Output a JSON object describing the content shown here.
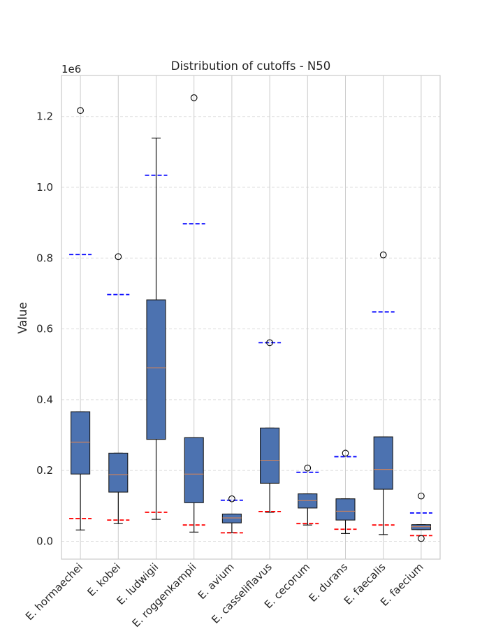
{
  "chart_data": {
    "type": "box",
    "title": "Distribution of cutoffs - N50",
    "xlabel": "",
    "ylabel": "Value",
    "y_offset_label": "1e6",
    "ylim": [
      -0.052,
      1.315
    ],
    "yticks": [
      0.0,
      0.2,
      0.4,
      0.6,
      0.8,
      1.0,
      1.2
    ],
    "ytick_labels": [
      "0.0",
      "0.2",
      "0.4",
      "0.6",
      "0.8",
      "1.0",
      "1.2"
    ],
    "grid": true,
    "categories": [
      "E. hormaechei",
      "E. kobei",
      "E. ludwigii",
      "E. roggenkampii",
      "E. avium",
      "E. casseliflavus",
      "E. cecorum",
      "E. durans",
      "E. faecalis",
      "E. faecium"
    ],
    "boxes": [
      {
        "whisker_low": 0.032,
        "q1": 0.19,
        "median": 0.28,
        "q3": 0.366,
        "whisker_high": 0.366,
        "outliers": [
          1.217
        ],
        "lower_cutoff": 0.064,
        "upper_cutoff": 0.81
      },
      {
        "whisker_low": 0.05,
        "q1": 0.139,
        "median": 0.188,
        "q3": 0.249,
        "whisker_high": 0.249,
        "outliers": [
          0.804
        ],
        "lower_cutoff": 0.06,
        "upper_cutoff": 0.697
      },
      {
        "whisker_low": 0.062,
        "q1": 0.288,
        "median": 0.49,
        "q3": 0.682,
        "whisker_high": 1.139,
        "outliers": [],
        "lower_cutoff": 0.082,
        "upper_cutoff": 1.034
      },
      {
        "whisker_low": 0.026,
        "q1": 0.109,
        "median": 0.19,
        "q3": 0.293,
        "whisker_high": 0.293,
        "outliers": [
          1.253
        ],
        "lower_cutoff": 0.046,
        "upper_cutoff": 0.897
      },
      {
        "whisker_low": 0.025,
        "q1": 0.052,
        "median": 0.066,
        "q3": 0.077,
        "whisker_high": 0.077,
        "outliers": [
          0.12
        ],
        "lower_cutoff": 0.024,
        "upper_cutoff": 0.116
      },
      {
        "whisker_low": 0.082,
        "q1": 0.164,
        "median": 0.229,
        "q3": 0.32,
        "whisker_high": 0.32,
        "outliers": [
          0.561
        ],
        "lower_cutoff": 0.084,
        "upper_cutoff": 0.561
      },
      {
        "whisker_low": 0.046,
        "q1": 0.094,
        "median": 0.115,
        "q3": 0.134,
        "whisker_high": 0.134,
        "outliers": [
          0.207
        ],
        "lower_cutoff": 0.05,
        "upper_cutoff": 0.195
      },
      {
        "whisker_low": 0.022,
        "q1": 0.06,
        "median": 0.085,
        "q3": 0.12,
        "whisker_high": 0.12,
        "outliers": [
          0.249
        ],
        "lower_cutoff": 0.034,
        "upper_cutoff": 0.239
      },
      {
        "whisker_low": 0.019,
        "q1": 0.147,
        "median": 0.203,
        "q3": 0.295,
        "whisker_high": 0.295,
        "outliers": [
          0.809
        ],
        "lower_cutoff": 0.046,
        "upper_cutoff": 0.648
      },
      {
        "whisker_low": 0.033,
        "q1": 0.033,
        "median": 0.041,
        "q3": 0.047,
        "whisker_high": 0.047,
        "outliers": [
          0.128,
          0.008
        ],
        "lower_cutoff": 0.016,
        "upper_cutoff": 0.08
      }
    ]
  },
  "colors": {
    "box_fill": "#4c72b0",
    "box_edge": "#1a1a1a",
    "median_line": "#dd8452",
    "whisker": "#000000",
    "upper_cutoff": "#0000ff",
    "lower_cutoff": "#ff0000",
    "grid": "#dddddd",
    "frame": "#cccccc"
  }
}
